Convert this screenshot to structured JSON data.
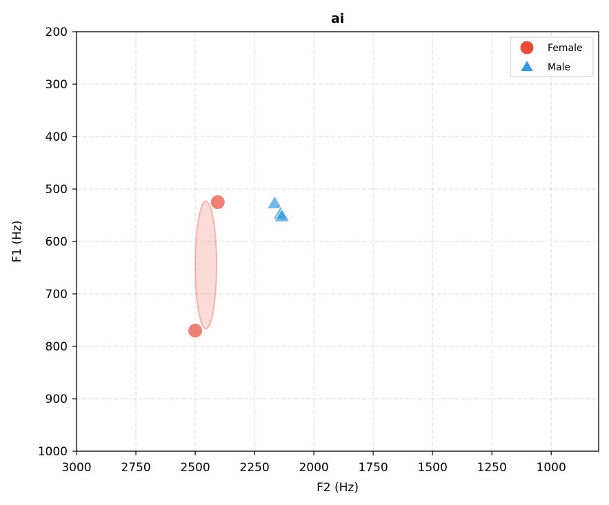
{
  "chart_data": {
    "type": "scatter",
    "title": "ai",
    "xlabel": "F2 (Hz)",
    "ylabel": "F1 (Hz)",
    "xlim": [
      3000,
      800
    ],
    "ylim": [
      1000,
      200
    ],
    "x_reversed": true,
    "y_reversed": true,
    "xticks": [
      3000,
      2750,
      2500,
      2250,
      2000,
      1750,
      1500,
      1250,
      1000
    ],
    "yticks": [
      200,
      300,
      400,
      500,
      600,
      700,
      800,
      900,
      1000
    ],
    "grid": true,
    "legend_position": "top-right",
    "series": [
      {
        "name": "Female",
        "marker": "circle",
        "color": "#e74c3c",
        "points": [
          {
            "x": 2405,
            "y": 525
          },
          {
            "x": 2500,
            "y": 770
          }
        ],
        "ellipse": {
          "cx": 2455,
          "cy": 645,
          "rx": 45,
          "ry": 122
        }
      },
      {
        "name": "Male",
        "marker": "triangle",
        "color": "#3498db",
        "points": [
          {
            "x": 2165,
            "y": 528
          },
          {
            "x": 2140,
            "y": 548
          },
          {
            "x": 2135,
            "y": 553
          }
        ]
      }
    ]
  }
}
